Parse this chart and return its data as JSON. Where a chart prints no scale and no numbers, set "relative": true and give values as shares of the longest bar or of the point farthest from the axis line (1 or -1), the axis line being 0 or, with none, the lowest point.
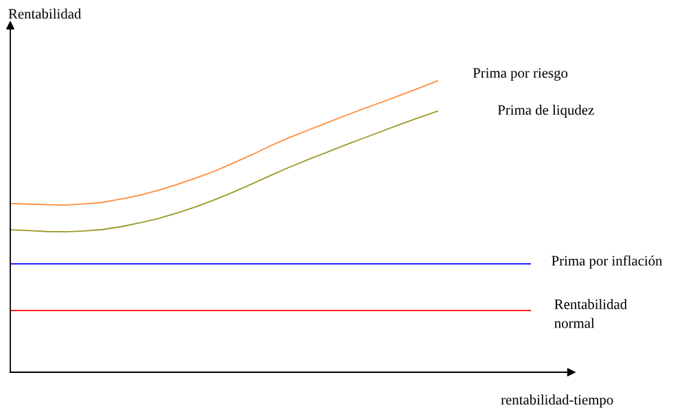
{
  "chart_data": {
    "type": "line",
    "relative": true,
    "xlabel": "rentabilidad-tiempo",
    "ylabel": "Rentabilidad",
    "tick_labels": false,
    "legend": false,
    "marker": "none",
    "line_style": "solid",
    "categories": [
      null,
      null,
      null,
      null,
      null,
      null,
      null,
      null,
      null,
      null,
      null,
      null,
      null,
      null,
      null,
      null,
      null,
      null,
      null,
      null,
      null,
      null,
      null,
      null,
      null,
      null,
      null,
      null,
      null
    ],
    "series": [
      {
        "name": "Prima por riesgo",
        "color": "#ff8c3a",
        "values": [
          0.579,
          0.577,
          0.575,
          0.574,
          0.578,
          0.583,
          0.595,
          0.608,
          0.625,
          0.645,
          0.667,
          0.69,
          0.718,
          0.746,
          0.777,
          0.805,
          0.83,
          0.855,
          0.88,
          0.904,
          0.927,
          0.951,
          0.975,
          1.0,
          null,
          null,
          null,
          null,
          null
        ]
      },
      {
        "name": "Prima de liqudez",
        "color": "#9a9a2a",
        "values": [
          0.489,
          0.486,
          0.483,
          0.482,
          0.485,
          0.49,
          0.5,
          0.513,
          0.528,
          0.547,
          0.568,
          0.592,
          0.618,
          0.646,
          0.675,
          0.703,
          0.729,
          0.754,
          0.779,
          0.803,
          0.827,
          0.851,
          0.874,
          0.896,
          null,
          null,
          null,
          null,
          null
        ]
      },
      {
        "name": "Prima por inflación",
        "color": "#0000ff",
        "values": [
          0.372,
          0.372,
          0.372,
          0.372,
          0.372,
          0.372,
          0.372,
          0.372,
          0.372,
          0.372,
          0.372,
          0.372,
          0.372,
          0.372,
          0.372,
          0.372,
          0.372,
          0.372,
          0.372,
          0.372,
          0.372,
          0.372,
          0.372,
          0.372,
          0.372,
          0.372,
          0.372,
          0.372,
          0.372
        ]
      },
      {
        "name": "Rentabilidad\nnormal",
        "color": "#ff0000",
        "values": [
          0.212,
          0.212,
          0.212,
          0.212,
          0.212,
          0.212,
          0.212,
          0.212,
          0.212,
          0.212,
          0.212,
          0.212,
          0.212,
          0.212,
          0.212,
          0.212,
          0.212,
          0.212,
          0.212,
          0.212,
          0.212,
          0.212,
          0.212,
          0.212,
          0.212,
          0.212,
          0.212,
          0.212,
          0.212
        ]
      }
    ]
  }
}
